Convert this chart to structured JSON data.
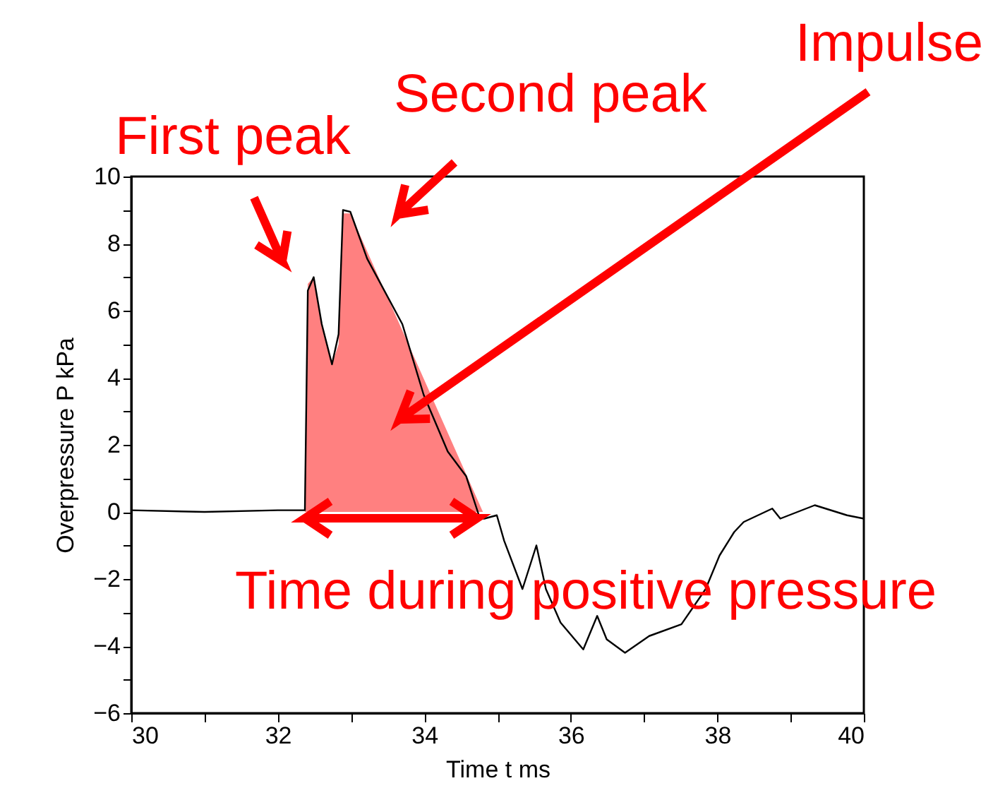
{
  "chart_data": {
    "type": "line",
    "xlabel": "Time  t  ms",
    "ylabel": "Overpressure  P  kPa",
    "xlim": [
      30,
      40
    ],
    "ylim": [
      -6,
      10
    ],
    "xticks": [
      30,
      {
        "value": 31,
        "label": null
      },
      32,
      {
        "value": 33,
        "label": null
      },
      34,
      {
        "value": 35,
        "label": null
      },
      36,
      {
        "value": 37,
        "label": null
      },
      38,
      {
        "value": 39,
        "label": null
      },
      40
    ],
    "yticks": [
      -6,
      {
        "value": -5,
        "label": null
      },
      -4,
      {
        "value": -3,
        "label": null
      },
      -2,
      {
        "value": -1,
        "label": null
      },
      0,
      {
        "value": 1,
        "label": null
      },
      2,
      {
        "value": 3,
        "label": null
      },
      4,
      {
        "value": 5,
        "label": null
      },
      6,
      {
        "value": 7,
        "label": null
      },
      8,
      {
        "value": 9,
        "label": null
      },
      10
    ],
    "grid": false,
    "series": [
      {
        "type": "area",
        "color": "#ff8080",
        "x": [
          32.37,
          32.41,
          32.49,
          32.6,
          32.74,
          32.83,
          32.89,
          32.99,
          34.8
        ],
        "values": [
          0,
          6.8,
          7.0,
          5.6,
          4.4,
          5.0,
          8.9,
          8.9,
          0
        ]
      },
      {
        "color": "#000000",
        "x": [
          30,
          31,
          32,
          32.37,
          32.41,
          32.49,
          32.6,
          32.74,
          32.83,
          32.89,
          32.99,
          33.22,
          33.7,
          33.99,
          34.32,
          34.57,
          34.76,
          34.82,
          34.99,
          35.09,
          35.34,
          35.53,
          35.66,
          35.86,
          36.17,
          36.36,
          36.49,
          36.74,
          37.07,
          37.51,
          37.84,
          38.03,
          38.23,
          38.36,
          38.75,
          38.86,
          39.33,
          39.77,
          40
        ],
        "values": [
          0.05,
          0.0,
          0.05,
          0.05,
          6.6,
          7.0,
          5.6,
          4.4,
          5.3,
          9.0,
          8.95,
          7.55,
          5.6,
          3.5,
          1.8,
          1.07,
          -0.2,
          -0.2,
          -0.1,
          -0.86,
          -2.3,
          -1.0,
          -2.3,
          -3.3,
          -4.1,
          -3.1,
          -3.8,
          -4.2,
          -3.7,
          -3.35,
          -2.3,
          -1.3,
          -0.6,
          -0.3,
          0.1,
          -0.2,
          0.2,
          -0.1,
          -0.2
        ]
      }
    ],
    "annotations": [
      "First peak",
      "Second peak",
      "Impulse",
      "Time during positive pressure"
    ]
  }
}
